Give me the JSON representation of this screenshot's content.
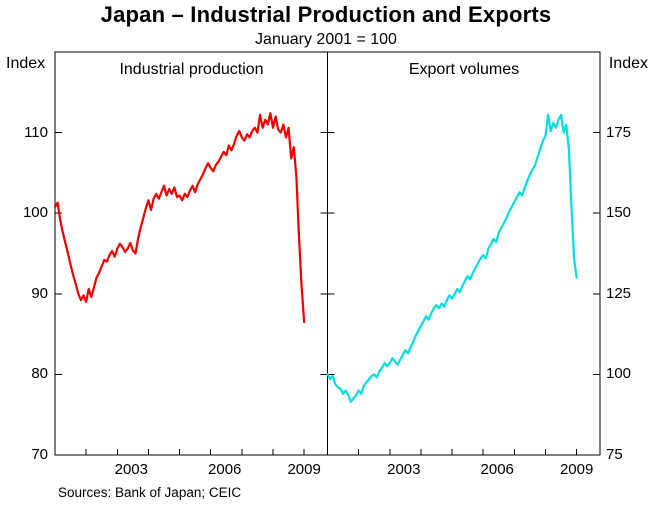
{
  "title": "Japan – Industrial Production and Exports",
  "subtitle": "January 2001 = 100",
  "source_note": "Sources: Bank of Japan; CEIC",
  "axes": {
    "left_unit": "Index",
    "right_unit": "Index"
  },
  "chart_data": {
    "type": "line",
    "title": "Japan – Industrial Production and Exports",
    "subtitle": "January 2001 = 100",
    "xlim": [
      2001,
      2009.75
    ],
    "xticklabels": [
      "2003",
      "2006",
      "2009"
    ],
    "grid": false,
    "panels": [
      {
        "label": "Industrial production",
        "color": "#ee0000",
        "axis_side": "left",
        "ylim": [
          70,
          120
        ],
        "yticks": [
          110,
          100,
          90,
          80,
          70
        ],
        "start_year": 2001,
        "start_month": 1,
        "frequency": "monthly",
        "values": [
          100.8,
          101.3,
          99.2,
          97.6,
          96.3,
          95.0,
          93.6,
          92.3,
          91.2,
          90.0,
          89.2,
          89.8,
          89.0,
          90.6,
          89.6,
          90.8,
          92.0,
          92.6,
          93.4,
          94.2,
          94.0,
          94.8,
          95.3,
          94.6,
          95.6,
          96.2,
          95.8,
          95.2,
          95.6,
          96.3,
          95.4,
          95.0,
          96.8,
          98.2,
          99.4,
          100.6,
          101.6,
          100.4,
          101.8,
          102.4,
          101.8,
          102.6,
          103.4,
          102.2,
          103.0,
          102.4,
          103.2,
          102.0,
          102.2,
          101.6,
          102.4,
          102.0,
          102.8,
          103.4,
          102.6,
          103.6,
          104.2,
          104.8,
          105.6,
          106.2,
          105.6,
          105.2,
          106.0,
          106.4,
          107.0,
          107.6,
          107.2,
          108.4,
          107.8,
          108.6,
          109.6,
          110.2,
          109.4,
          109.0,
          109.8,
          109.4,
          110.2,
          110.6,
          110.0,
          112.2,
          110.6,
          111.6,
          111.0,
          112.4,
          110.6,
          112.0,
          110.4,
          110.0,
          111.0,
          109.4,
          110.6,
          106.8,
          108.2,
          104.6,
          97.2,
          91.0,
          86.5
        ]
      },
      {
        "label": "Export volumes",
        "color": "#00dde0",
        "axis_side": "right",
        "ylim": [
          75,
          200
        ],
        "yticks": [
          175,
          150,
          125,
          100,
          75
        ],
        "start_year": 2001,
        "start_month": 1,
        "frequency": "monthly",
        "values": [
          100.0,
          98.5,
          99.5,
          97.0,
          96.0,
          95.5,
          94.0,
          95.0,
          93.5,
          91.5,
          92.5,
          93.5,
          95.0,
          94.0,
          96.5,
          97.5,
          98.5,
          99.5,
          100.0,
          99.0,
          101.0,
          102.0,
          103.5,
          102.5,
          103.5,
          105.0,
          104.0,
          103.0,
          104.5,
          106.0,
          107.5,
          106.5,
          108.5,
          110.0,
          112.0,
          113.5,
          115.0,
          116.5,
          118.0,
          117.0,
          119.0,
          120.5,
          121.5,
          120.5,
          122.0,
          121.0,
          123.0,
          124.5,
          123.5,
          125.0,
          126.5,
          125.5,
          127.5,
          129.0,
          130.5,
          129.5,
          131.5,
          133.0,
          134.5,
          136.0,
          137.0,
          136.0,
          139.0,
          140.5,
          142.0,
          141.0,
          144.0,
          145.5,
          147.0,
          148.5,
          150.5,
          152.0,
          153.5,
          155.0,
          156.5,
          155.5,
          158.0,
          160.0,
          162.0,
          163.5,
          165.0,
          167.5,
          170.0,
          172.5,
          174.0,
          180.5,
          175.5,
          178.0,
          176.5,
          179.0,
          180.5,
          175.0,
          177.5,
          170.0,
          152.0,
          136.0,
          130.0
        ]
      }
    ]
  }
}
